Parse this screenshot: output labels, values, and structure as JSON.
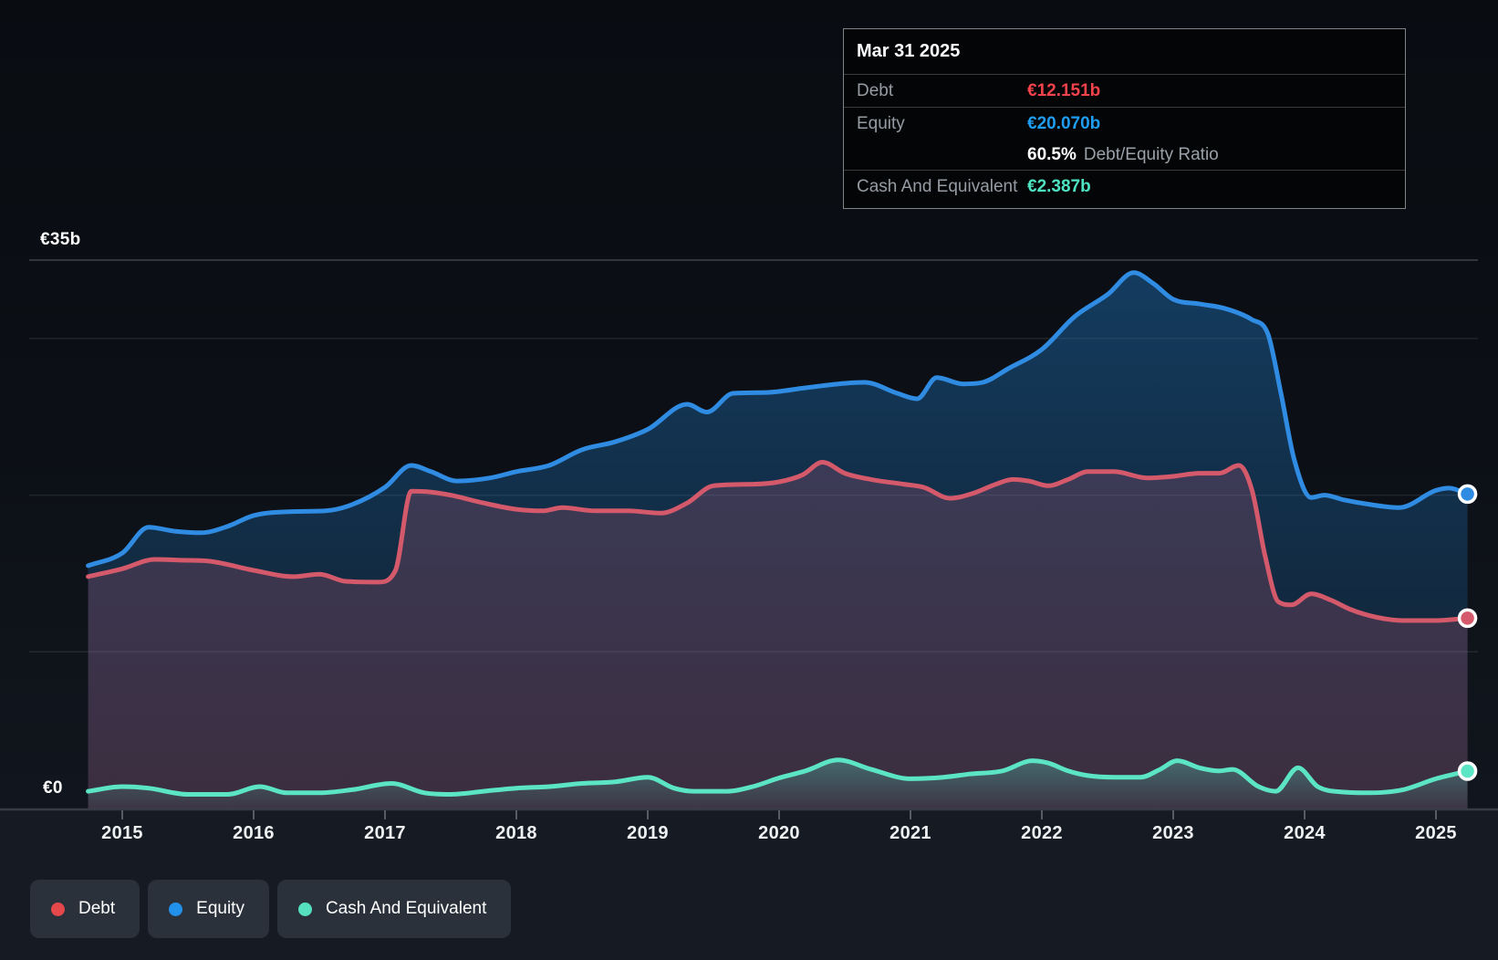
{
  "page": {
    "background": "#161b23",
    "plot_background": "#0c1016"
  },
  "y_axis_labels": {
    "top": "€35b",
    "zero": "€0"
  },
  "tooltip": {
    "title": "Mar 31 2025",
    "debt_label": "Debt",
    "debt_value": "€12.151b",
    "equity_label": "Equity",
    "equity_value": "€20.070b",
    "ratio_value": "60.5%",
    "ratio_label": "Debt/Equity Ratio",
    "cash_label": "Cash And Equivalent",
    "cash_value": "€2.387b"
  },
  "legend": {
    "items": [
      {
        "label": "Debt",
        "color": "#e4484b"
      },
      {
        "label": "Equity",
        "color": "#2191ea"
      },
      {
        "label": "Cash And Equivalent",
        "color": "#55e0bf"
      }
    ]
  },
  "colors": {
    "debt_line": "#d4596a",
    "equity_line": "#2f8ce2",
    "cash_line": "#5be5c4",
    "debt_fill": "rgba(226,98,130,0.20)",
    "equity_fill_top": "rgba(32,122,198,0.42)",
    "equity_fill_bottom": "rgba(32,122,198,0.10)",
    "cash_fill_top": "rgba(88,226,198,0.32)",
    "cash_fill_bottom": "rgba(88,226,198,0.04)",
    "debt_value_text": "#f5434c",
    "equity_value_text": "#1e9df2",
    "cash_value_text": "#4ee4c3",
    "gridline_major": "rgba(255,255,255,0.22)",
    "gridline_minor": "rgba(255,255,255,0.09)",
    "axis_line": "#343b45",
    "tick": "#565d66"
  },
  "chart_data": {
    "type": "area",
    "unit": "EUR billions",
    "y_axis": {
      "min": 0,
      "max": 35,
      "gridline_values": [
        35,
        30,
        20,
        10,
        0
      ],
      "labels": [
        {
          "text": "€35b",
          "value": 35
        },
        {
          "text": "€0",
          "value": 0
        }
      ]
    },
    "x_axis": {
      "ticks": [
        {
          "label": "2015",
          "year": 2015
        },
        {
          "label": "2016",
          "year": 2016
        },
        {
          "label": "2017",
          "year": 2017
        },
        {
          "label": "2018",
          "year": 2018
        },
        {
          "label": "2019",
          "year": 2019
        },
        {
          "label": "2020",
          "year": 2020
        },
        {
          "label": "2021",
          "year": 2021
        },
        {
          "label": "2022",
          "year": 2022
        },
        {
          "label": "2023",
          "year": 2023
        },
        {
          "label": "2024",
          "year": 2024
        },
        {
          "label": "2025",
          "year": 2025
        }
      ],
      "range": [
        2014.74,
        2025.24
      ]
    },
    "highlight_point": {
      "date": "Mar 31 2025",
      "debt_b": 12.151,
      "equity_b": 20.07,
      "debt_equity_ratio_pct": 60.5,
      "cash_b": 2.387
    },
    "series": [
      {
        "name": "Equity",
        "points": [
          [
            2014.74,
            15.5
          ],
          [
            2015.0,
            16.3
          ],
          [
            2015.2,
            17.95
          ],
          [
            2015.4,
            17.7
          ],
          [
            2015.6,
            17.6
          ],
          [
            2015.8,
            18.0
          ],
          [
            2016.0,
            18.7
          ],
          [
            2016.3,
            18.95
          ],
          [
            2016.55,
            19.0
          ],
          [
            2016.75,
            19.4
          ],
          [
            2017.0,
            20.5
          ],
          [
            2017.2,
            21.9
          ],
          [
            2017.35,
            21.5
          ],
          [
            2017.55,
            20.9
          ],
          [
            2017.8,
            21.1
          ],
          [
            2018.0,
            21.5
          ],
          [
            2018.25,
            21.9
          ],
          [
            2018.5,
            22.9
          ],
          [
            2018.75,
            23.4
          ],
          [
            2019.0,
            24.2
          ],
          [
            2019.3,
            25.8
          ],
          [
            2019.45,
            25.3
          ],
          [
            2019.65,
            26.5
          ],
          [
            2019.9,
            26.55
          ],
          [
            2020.2,
            26.85
          ],
          [
            2020.45,
            27.1
          ],
          [
            2020.65,
            27.2
          ],
          [
            2020.9,
            26.5
          ],
          [
            2021.05,
            26.15
          ],
          [
            2021.2,
            27.5
          ],
          [
            2021.4,
            27.1
          ],
          [
            2021.55,
            27.2
          ],
          [
            2021.75,
            28.1
          ],
          [
            2022.0,
            29.3
          ],
          [
            2022.25,
            31.4
          ],
          [
            2022.5,
            32.8
          ],
          [
            2022.7,
            34.2
          ],
          [
            2022.85,
            33.5
          ],
          [
            2023.0,
            32.5
          ],
          [
            2023.2,
            32.2
          ],
          [
            2023.4,
            31.9
          ],
          [
            2023.6,
            31.2
          ],
          [
            2023.72,
            30.3
          ],
          [
            2023.82,
            26.5
          ],
          [
            2023.92,
            22.3
          ],
          [
            2024.05,
            19.85
          ],
          [
            2024.15,
            20.0
          ],
          [
            2024.3,
            19.7
          ],
          [
            2024.5,
            19.4
          ],
          [
            2024.72,
            19.2
          ],
          [
            2025.0,
            20.3
          ],
          [
            2025.1,
            20.45
          ],
          [
            2025.24,
            20.07
          ]
        ]
      },
      {
        "name": "Debt",
        "points": [
          [
            2014.74,
            14.8
          ],
          [
            2015.0,
            15.3
          ],
          [
            2015.25,
            15.9
          ],
          [
            2015.45,
            15.85
          ],
          [
            2015.65,
            15.8
          ],
          [
            2016.0,
            15.2
          ],
          [
            2016.3,
            14.8
          ],
          [
            2016.5,
            14.95
          ],
          [
            2016.7,
            14.5
          ],
          [
            2016.95,
            14.45
          ],
          [
            2017.08,
            15.2
          ],
          [
            2017.2,
            20.25
          ],
          [
            2017.35,
            20.2
          ],
          [
            2017.5,
            20.0
          ],
          [
            2017.75,
            19.5
          ],
          [
            2018.0,
            19.1
          ],
          [
            2018.2,
            19.0
          ],
          [
            2018.35,
            19.2
          ],
          [
            2018.6,
            19.0
          ],
          [
            2018.85,
            19.0
          ],
          [
            2019.1,
            18.85
          ],
          [
            2019.3,
            19.5
          ],
          [
            2019.5,
            20.6
          ],
          [
            2019.8,
            20.7
          ],
          [
            2020.0,
            20.85
          ],
          [
            2020.18,
            21.3
          ],
          [
            2020.33,
            22.1
          ],
          [
            2020.5,
            21.4
          ],
          [
            2020.7,
            21.0
          ],
          [
            2020.95,
            20.7
          ],
          [
            2021.1,
            20.5
          ],
          [
            2021.3,
            19.8
          ],
          [
            2021.47,
            20.1
          ],
          [
            2021.65,
            20.7
          ],
          [
            2021.78,
            21.0
          ],
          [
            2021.9,
            20.9
          ],
          [
            2022.05,
            20.6
          ],
          [
            2022.2,
            21.0
          ],
          [
            2022.35,
            21.5
          ],
          [
            2022.55,
            21.5
          ],
          [
            2022.8,
            21.1
          ],
          [
            2023.0,
            21.2
          ],
          [
            2023.2,
            21.4
          ],
          [
            2023.35,
            21.4
          ],
          [
            2023.5,
            21.9
          ],
          [
            2023.6,
            20.3
          ],
          [
            2023.7,
            16.1
          ],
          [
            2023.8,
            13.2
          ],
          [
            2023.9,
            13.0
          ],
          [
            2024.05,
            13.7
          ],
          [
            2024.2,
            13.3
          ],
          [
            2024.35,
            12.7
          ],
          [
            2024.55,
            12.2
          ],
          [
            2024.75,
            12.0
          ],
          [
            2025.0,
            12.0
          ],
          [
            2025.24,
            12.151
          ]
        ]
      },
      {
        "name": "Cash And Equivalent",
        "points": [
          [
            2014.74,
            1.1
          ],
          [
            2015.0,
            1.4
          ],
          [
            2015.2,
            1.3
          ],
          [
            2015.5,
            0.9
          ],
          [
            2015.8,
            0.9
          ],
          [
            2016.05,
            1.4
          ],
          [
            2016.25,
            1.0
          ],
          [
            2016.5,
            1.0
          ],
          [
            2016.75,
            1.2
          ],
          [
            2017.05,
            1.6
          ],
          [
            2017.3,
            1.0
          ],
          [
            2017.5,
            0.9
          ],
          [
            2017.75,
            1.1
          ],
          [
            2018.0,
            1.3
          ],
          [
            2018.25,
            1.4
          ],
          [
            2018.5,
            1.6
          ],
          [
            2018.75,
            1.7
          ],
          [
            2019.0,
            2.0
          ],
          [
            2019.2,
            1.3
          ],
          [
            2019.35,
            1.1
          ],
          [
            2019.6,
            1.1
          ],
          [
            2019.8,
            1.4
          ],
          [
            2020.0,
            1.95
          ],
          [
            2020.2,
            2.4
          ],
          [
            2020.45,
            3.1
          ],
          [
            2020.7,
            2.5
          ],
          [
            2021.0,
            1.9
          ],
          [
            2021.25,
            2.0
          ],
          [
            2021.45,
            2.2
          ],
          [
            2021.7,
            2.4
          ],
          [
            2021.93,
            3.05
          ],
          [
            2022.05,
            2.9
          ],
          [
            2022.2,
            2.4
          ],
          [
            2022.35,
            2.1
          ],
          [
            2022.55,
            2.0
          ],
          [
            2022.75,
            2.0
          ],
          [
            2022.9,
            2.5
          ],
          [
            2023.03,
            3.05
          ],
          [
            2023.2,
            2.6
          ],
          [
            2023.35,
            2.4
          ],
          [
            2023.45,
            2.5
          ],
          [
            2023.65,
            1.4
          ],
          [
            2023.78,
            1.1
          ],
          [
            2023.95,
            2.6
          ],
          [
            2024.1,
            1.4
          ],
          [
            2024.3,
            1.05
          ],
          [
            2024.5,
            1.0
          ],
          [
            2024.75,
            1.2
          ],
          [
            2025.0,
            1.9
          ],
          [
            2025.24,
            2.387
          ]
        ]
      }
    ]
  }
}
